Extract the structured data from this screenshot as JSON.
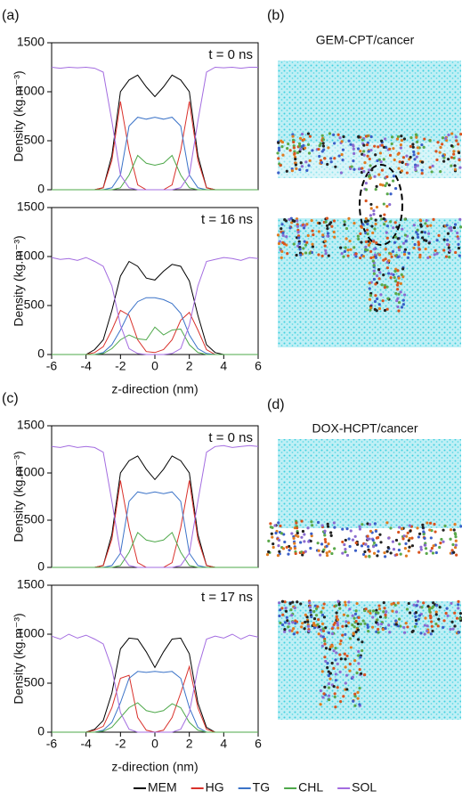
{
  "legend": [
    {
      "name": "MEM",
      "color": "#000000"
    },
    {
      "name": "HG",
      "color": "#d9312b"
    },
    {
      "name": "TG",
      "color": "#3b73c8"
    },
    {
      "name": "CHL",
      "color": "#4ea84a"
    },
    {
      "name": "SOL",
      "color": "#a36ce0"
    }
  ],
  "panels": [
    {
      "label": "(b)",
      "title": "GEM-CPT/cancer"
    },
    {
      "label": "(d)",
      "title": "DOX-HCPT/cancer"
    }
  ],
  "chart_data": [
    {
      "type": "line",
      "panel_label": "(a)",
      "annotation": "t = 0 ns",
      "ylabel": "Density (kg.m⁻³)",
      "x": [
        -6,
        -5.5,
        -5,
        -4.5,
        -4,
        -3.5,
        -3,
        -2.5,
        -2,
        -1.5,
        -1,
        -0.5,
        0,
        0.5,
        1,
        1.5,
        2,
        2.5,
        3,
        3.5,
        4,
        4.5,
        5,
        5.5,
        6
      ],
      "xlim": [
        -6,
        6
      ],
      "ylim": [
        0,
        1500
      ],
      "yticks": [
        0,
        500,
        1000,
        1500
      ],
      "series": [
        {
          "values": [
            0,
            0,
            0,
            0,
            0,
            0,
            20,
            350,
            1000,
            1120,
            1170,
            1050,
            950,
            1050,
            1170,
            1120,
            1000,
            350,
            20,
            0,
            0,
            0,
            0,
            0,
            0
          ]
        },
        {
          "values": [
            0,
            0,
            0,
            0,
            0,
            0,
            20,
            300,
            900,
            400,
            50,
            0,
            0,
            0,
            50,
            400,
            900,
            300,
            20,
            0,
            0,
            0,
            0,
            0,
            0
          ]
        },
        {
          "values": [
            0,
            0,
            0,
            0,
            0,
            0,
            0,
            20,
            150,
            650,
            740,
            720,
            740,
            720,
            740,
            650,
            150,
            20,
            0,
            0,
            0,
            0,
            0,
            0,
            0
          ]
        },
        {
          "values": [
            0,
            0,
            0,
            0,
            0,
            0,
            0,
            0,
            20,
            150,
            350,
            270,
            250,
            270,
            350,
            150,
            20,
            0,
            0,
            0,
            0,
            0,
            0,
            0,
            0
          ]
        },
        {
          "values": [
            1250,
            1240,
            1250,
            1245,
            1250,
            1240,
            1200,
            700,
            150,
            20,
            0,
            0,
            0,
            0,
            0,
            20,
            150,
            700,
            1200,
            1250,
            1245,
            1250,
            1240,
            1250,
            1250
          ]
        }
      ]
    },
    {
      "type": "line",
      "annotation": "t = 16 ns",
      "ylabel": "Density (kg.m⁻³)",
      "xlabel": "z-direction (nm)",
      "x": [
        -6,
        -5.5,
        -5,
        -4.5,
        -4,
        -3.5,
        -3,
        -2.5,
        -2,
        -1.5,
        -1,
        -0.5,
        0,
        0.5,
        1,
        1.5,
        2,
        2.5,
        3,
        3.5,
        4,
        4.5,
        5,
        5.5,
        6
      ],
      "xlim": [
        -6,
        6
      ],
      "ylim": [
        0,
        1500
      ],
      "yticks": [
        0,
        500,
        1000,
        1500
      ],
      "xticks": [
        -6,
        -4,
        -2,
        0,
        2,
        4,
        6
      ],
      "series": [
        {
          "values": [
            0,
            0,
            0,
            0,
            0,
            50,
            150,
            450,
            800,
            950,
            900,
            780,
            760,
            850,
            920,
            900,
            750,
            400,
            100,
            20,
            0,
            0,
            0,
            0,
            0
          ]
        },
        {
          "values": [
            0,
            0,
            0,
            0,
            0,
            20,
            80,
            250,
            450,
            400,
            150,
            30,
            20,
            50,
            150,
            350,
            430,
            250,
            50,
            0,
            0,
            0,
            0,
            0,
            0
          ]
        },
        {
          "values": [
            0,
            0,
            0,
            0,
            0,
            0,
            20,
            100,
            250,
            430,
            540,
            580,
            580,
            560,
            520,
            420,
            200,
            60,
            10,
            0,
            0,
            0,
            0,
            0,
            0
          ]
        },
        {
          "values": [
            0,
            0,
            0,
            0,
            0,
            0,
            10,
            60,
            150,
            200,
            160,
            150,
            280,
            200,
            250,
            260,
            100,
            20,
            0,
            0,
            0,
            0,
            0,
            0,
            0
          ]
        },
        {
          "values": [
            990,
            970,
            980,
            960,
            990,
            950,
            900,
            700,
            300,
            60,
            10,
            0,
            0,
            0,
            10,
            60,
            300,
            700,
            950,
            970,
            990,
            980,
            960,
            990,
            980
          ]
        }
      ]
    },
    {
      "type": "line",
      "panel_label": "(c)",
      "annotation": "t = 0 ns",
      "ylabel": "Density (kg.m⁻³)",
      "x": [
        -6,
        -5.5,
        -5,
        -4.5,
        -4,
        -3.5,
        -3,
        -2.5,
        -2,
        -1.5,
        -1,
        -0.5,
        0,
        0.5,
        1,
        1.5,
        2,
        2.5,
        3,
        3.5,
        4,
        4.5,
        5,
        5.5,
        6
      ],
      "xlim": [
        -6,
        6
      ],
      "ylim": [
        0,
        1500
      ],
      "yticks": [
        0,
        500,
        1000,
        1500
      ],
      "series": [
        {
          "values": [
            0,
            0,
            0,
            0,
            0,
            0,
            20,
            350,
            1000,
            1130,
            1180,
            1040,
            930,
            1040,
            1180,
            1130,
            1000,
            350,
            20,
            0,
            0,
            0,
            0,
            0,
            0
          ]
        },
        {
          "values": [
            0,
            0,
            0,
            0,
            0,
            0,
            20,
            300,
            920,
            420,
            50,
            0,
            0,
            0,
            50,
            420,
            920,
            300,
            20,
            0,
            0,
            0,
            0,
            0,
            0
          ]
        },
        {
          "values": [
            0,
            0,
            0,
            0,
            0,
            0,
            0,
            20,
            150,
            700,
            800,
            780,
            800,
            780,
            800,
            700,
            150,
            20,
            0,
            0,
            0,
            0,
            0,
            0,
            0
          ]
        },
        {
          "values": [
            0,
            0,
            0,
            0,
            0,
            0,
            0,
            0,
            20,
            160,
            370,
            290,
            270,
            290,
            370,
            160,
            20,
            0,
            0,
            0,
            0,
            0,
            0,
            0,
            0
          ]
        },
        {
          "values": [
            1280,
            1270,
            1290,
            1270,
            1280,
            1270,
            1220,
            700,
            150,
            20,
            0,
            0,
            0,
            0,
            0,
            20,
            150,
            700,
            1220,
            1280,
            1290,
            1270,
            1280,
            1290,
            1280
          ]
        }
      ]
    },
    {
      "type": "line",
      "annotation": "t = 17 ns",
      "ylabel": "Density (kg.m⁻³)",
      "xlabel": "z-direction (nm)",
      "x": [
        -6,
        -5.5,
        -5,
        -4.5,
        -4,
        -3.5,
        -3,
        -2.5,
        -2,
        -1.5,
        -1,
        -0.5,
        0,
        0.5,
        1,
        1.5,
        2,
        2.5,
        3,
        3.5,
        4,
        4.5,
        5,
        5.5,
        6
      ],
      "xlim": [
        -6,
        6
      ],
      "ylim": [
        0,
        1500
      ],
      "yticks": [
        0,
        500,
        1000,
        1500
      ],
      "xticks": [
        -6,
        -4,
        -2,
        0,
        2,
        4,
        6
      ],
      "series": [
        {
          "values": [
            0,
            0,
            0,
            0,
            0,
            30,
            120,
            400,
            850,
            960,
            950,
            820,
            660,
            820,
            950,
            960,
            800,
            300,
            50,
            0,
            0,
            0,
            0,
            0,
            0
          ]
        },
        {
          "values": [
            0,
            0,
            0,
            0,
            0,
            20,
            60,
            250,
            550,
            580,
            150,
            20,
            0,
            20,
            150,
            400,
            670,
            250,
            30,
            0,
            0,
            0,
            0,
            0,
            0
          ]
        },
        {
          "values": [
            0,
            0,
            0,
            0,
            0,
            0,
            20,
            100,
            300,
            550,
            620,
            610,
            620,
            610,
            620,
            550,
            250,
            50,
            0,
            0,
            0,
            0,
            0,
            0,
            0
          ]
        },
        {
          "values": [
            0,
            0,
            0,
            0,
            0,
            0,
            10,
            50,
            150,
            250,
            300,
            220,
            200,
            220,
            290,
            250,
            100,
            20,
            0,
            0,
            0,
            0,
            0,
            0,
            0
          ]
        },
        {
          "values": [
            980,
            950,
            1000,
            960,
            990,
            950,
            900,
            650,
            200,
            30,
            0,
            0,
            0,
            0,
            0,
            30,
            200,
            650,
            950,
            980,
            960,
            1000,
            950,
            990,
            970
          ]
        }
      ]
    }
  ]
}
